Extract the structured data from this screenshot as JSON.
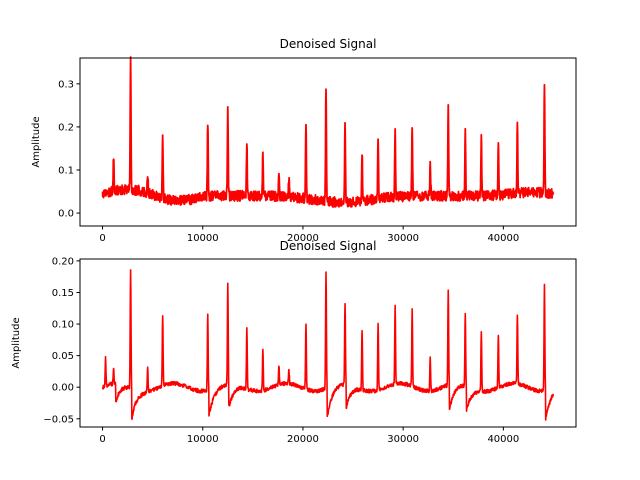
{
  "chart_data": [
    {
      "type": "line",
      "title": "Denoised Signal",
      "xlabel": "",
      "ylabel": "Amplitude",
      "xlim": [
        -2250,
        47250
      ],
      "ylim": [
        -0.03,
        0.36
      ],
      "xticks": [
        0,
        10000,
        20000,
        30000,
        40000
      ],
      "yticks": [
        0.0,
        0.1,
        0.2,
        0.3
      ],
      "ytick_labels": [
        "0.0",
        "0.1",
        "0.2",
        "0.3"
      ],
      "grid": false,
      "color": "#ff0000",
      "baseline": 0.04,
      "noise": 0.012,
      "peaks": [
        {
          "x": 1100,
          "y": 0.12
        },
        {
          "x": 2800,
          "y": 0.34
        },
        {
          "x": 4500,
          "y": 0.085
        },
        {
          "x": 6000,
          "y": 0.185
        },
        {
          "x": 10500,
          "y": 0.21
        },
        {
          "x": 12500,
          "y": 0.235
        },
        {
          "x": 14400,
          "y": 0.16
        },
        {
          "x": 16000,
          "y": 0.14
        },
        {
          "x": 17600,
          "y": 0.095
        },
        {
          "x": 18600,
          "y": 0.085
        },
        {
          "x": 20300,
          "y": 0.21
        },
        {
          "x": 22300,
          "y": 0.31
        },
        {
          "x": 24200,
          "y": 0.225
        },
        {
          "x": 25900,
          "y": 0.155
        },
        {
          "x": 27500,
          "y": 0.175
        },
        {
          "x": 29200,
          "y": 0.19
        },
        {
          "x": 30900,
          "y": 0.21
        },
        {
          "x": 32700,
          "y": 0.12
        },
        {
          "x": 34500,
          "y": 0.25
        },
        {
          "x": 36200,
          "y": 0.185
        },
        {
          "x": 37800,
          "y": 0.175
        },
        {
          "x": 39500,
          "y": 0.155
        },
        {
          "x": 41400,
          "y": 0.195
        },
        {
          "x": 44100,
          "y": 0.29
        }
      ]
    },
    {
      "type": "line",
      "title": "Denoised Signal",
      "xlabel": "",
      "ylabel": "Amplitude",
      "xlim": [
        -2250,
        47250
      ],
      "ylim": [
        -0.063,
        0.203
      ],
      "xticks": [
        0,
        10000,
        20000,
        30000,
        40000
      ],
      "yticks": [
        -0.05,
        0.0,
        0.05,
        0.1,
        0.15,
        0.2
      ],
      "ytick_labels": [
        "−0.05",
        "0.00",
        "0.05",
        "0.10",
        "0.15",
        "0.20"
      ],
      "grid": false,
      "color": "#ff0000",
      "baseline": 0.0,
      "noise": 0.003,
      "peaks": [
        {
          "x": 300,
          "y": 0.045
        },
        {
          "x": 1100,
          "y": 0.025
        },
        {
          "x": 2800,
          "y": 0.19
        },
        {
          "x": 4500,
          "y": 0.04
        },
        {
          "x": 6000,
          "y": 0.113
        },
        {
          "x": 10500,
          "y": 0.12
        },
        {
          "x": 12500,
          "y": 0.16
        },
        {
          "x": 14400,
          "y": 0.095
        },
        {
          "x": 16000,
          "y": 0.068
        },
        {
          "x": 17600,
          "y": 0.03
        },
        {
          "x": 18600,
          "y": 0.02
        },
        {
          "x": 20300,
          "y": 0.103
        },
        {
          "x": 22300,
          "y": 0.187
        },
        {
          "x": 24200,
          "y": 0.13
        },
        {
          "x": 25900,
          "y": 0.097
        },
        {
          "x": 27500,
          "y": 0.108
        },
        {
          "x": 29200,
          "y": 0.122
        },
        {
          "x": 30900,
          "y": 0.12
        },
        {
          "x": 32700,
          "y": 0.053
        },
        {
          "x": 34500,
          "y": 0.15
        },
        {
          "x": 36200,
          "y": 0.115
        },
        {
          "x": 37800,
          "y": 0.097
        },
        {
          "x": 39500,
          "y": 0.083
        },
        {
          "x": 41400,
          "y": 0.11
        },
        {
          "x": 44100,
          "y": 0.166
        }
      ],
      "dips": [
        {
          "x": 2900,
          "y": -0.05
        },
        {
          "x": 1300,
          "y": -0.03
        },
        {
          "x": 10600,
          "y": -0.042
        },
        {
          "x": 12600,
          "y": -0.04
        },
        {
          "x": 22400,
          "y": -0.048
        },
        {
          "x": 24300,
          "y": -0.04
        },
        {
          "x": 34600,
          "y": -0.042
        },
        {
          "x": 36300,
          "y": -0.04
        },
        {
          "x": 44200,
          "y": -0.048
        }
      ]
    }
  ]
}
